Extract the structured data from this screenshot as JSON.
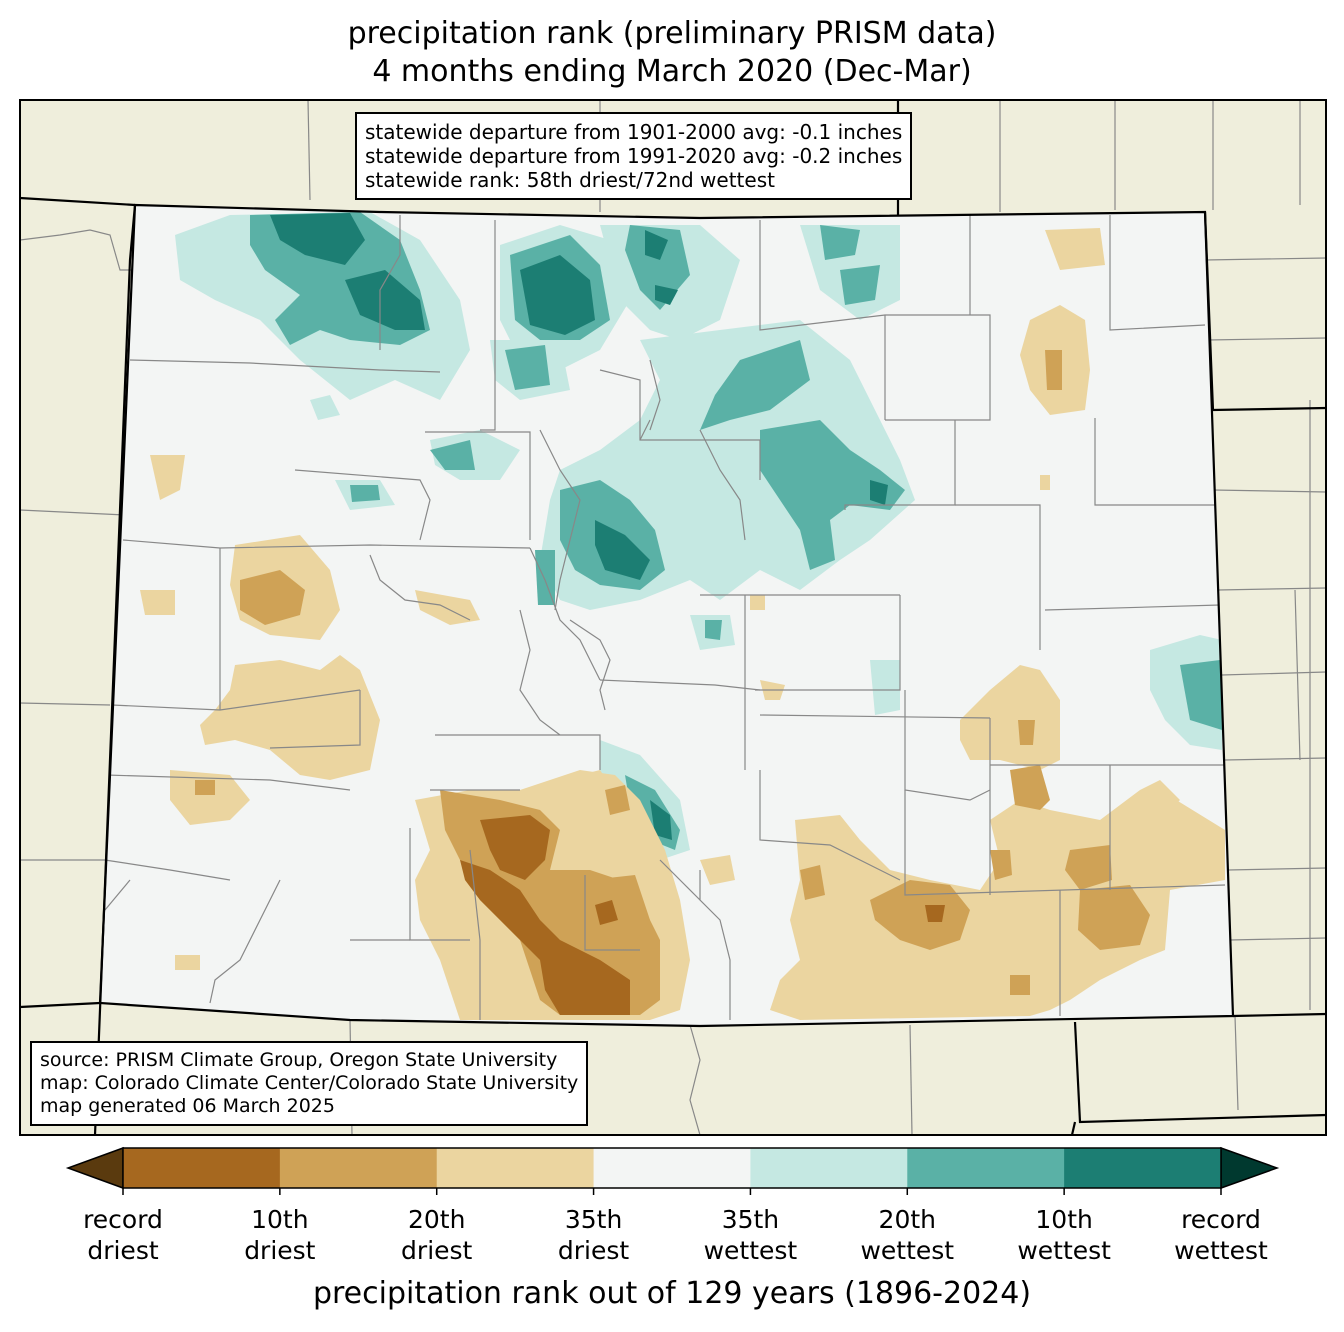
{
  "title": {
    "line1": "precipitation rank (preliminary PRISM data)",
    "line2": "4 months ending March 2020 (Dec-Mar)"
  },
  "stats": {
    "line1": "statewide departure from 1901-2000 avg: -0.1 inches",
    "line2": "statewide departure from 1991-2020 avg: -0.2 inches",
    "line3": "statewide rank: 58th driest/72nd wettest"
  },
  "credits": {
    "line1": "source: PRISM Climate Group, Oregon State University",
    "line2": "map: Colorado Climate Center/Colorado State University",
    "line3": "map generated 06 March 2025"
  },
  "colorbar": {
    "title": "precipitation rank out of 129 years (1896-2024)",
    "ticks": [
      {
        "l1": "record",
        "l2": "driest"
      },
      {
        "l1": "10th",
        "l2": "driest"
      },
      {
        "l1": "20th",
        "l2": "driest"
      },
      {
        "l1": "35th",
        "l2": "driest"
      },
      {
        "l1": "35th",
        "l2": "wettest"
      },
      {
        "l1": "20th",
        "l2": "wettest"
      },
      {
        "l1": "10th",
        "l2": "wettest"
      },
      {
        "l1": "record",
        "l2": "wettest"
      }
    ],
    "colors": [
      "#a6681f",
      "#cfa256",
      "#ebd5a0",
      "#f3f5f4",
      "#c5e8e2",
      "#5ab1a6",
      "#1c7e73"
    ],
    "extend_low_color": "#5a3a0e",
    "extend_high_color": "#00392f"
  },
  "map_colors": {
    "background": "#efeedc",
    "state_fill": "#f3f5f4",
    "county_lines": "#888888",
    "state_lines": "#000000"
  }
}
